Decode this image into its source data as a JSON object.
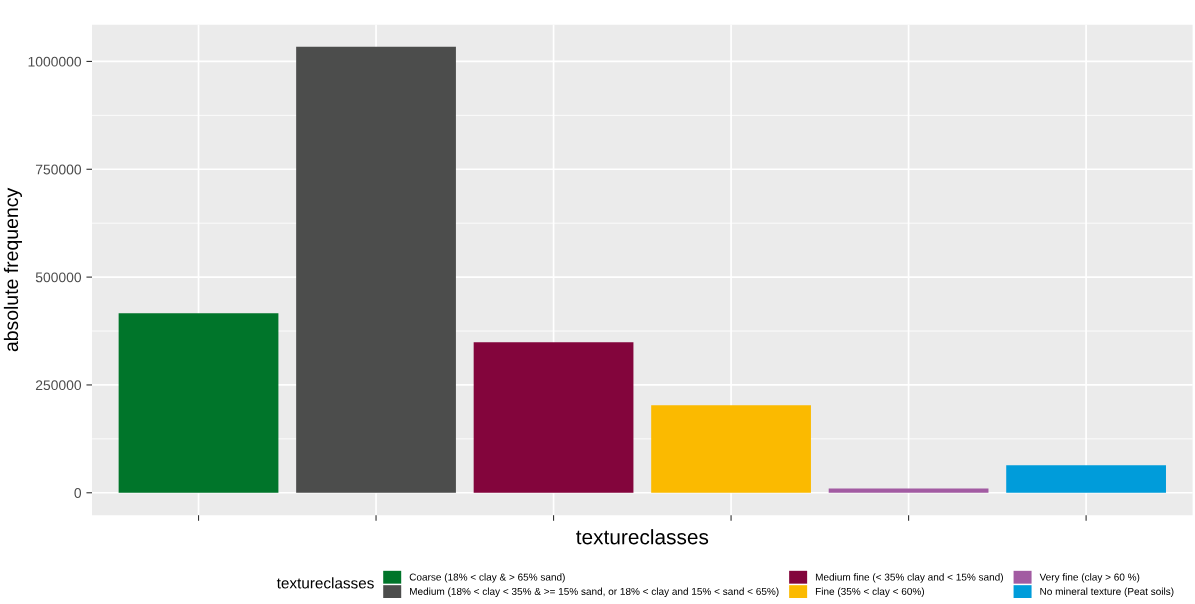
{
  "chart_data": {
    "type": "bar",
    "xlabel": "textureclasses",
    "ylabel": "absolute frequency",
    "legend_title": "textureclasses",
    "categories": [
      null,
      null,
      null,
      null,
      null,
      null
    ],
    "series": [
      {
        "name": "Coarse (18% < clay & > 65% sand)",
        "color": "#00752a",
        "values": [
          416000,
          null,
          null,
          null,
          null,
          null
        ]
      },
      {
        "name": "Medium (18% < clay < 35% & >= 15% sand, or 18% < clay and 15% < sand < 65%)",
        "color": "#4c4d4c",
        "values": [
          null,
          1034000,
          null,
          null,
          null,
          null
        ]
      },
      {
        "name": "Medium fine (< 35% clay and < 15% sand)",
        "color": "#83053c",
        "values": [
          null,
          null,
          349000,
          null,
          null,
          null
        ]
      },
      {
        "name": "Fine (35% < clay < 60%)",
        "color": "#fbba00",
        "values": [
          null,
          null,
          null,
          203000,
          null,
          null
        ]
      },
      {
        "name": "Very fine (clay > 60 %)",
        "color": "#a25ba2",
        "values": [
          null,
          null,
          null,
          null,
          10000,
          null
        ]
      },
      {
        "name": "No mineral texture (Peat soils)",
        "color": "#009cda",
        "values": [
          null,
          null,
          null,
          null,
          null,
          64000
        ]
      }
    ],
    "ylim": [
      -52000,
      1085000
    ],
    "yticks": [
      0,
      250000,
      500000,
      750000,
      1000000
    ],
    "grid": true,
    "legend": "bottom",
    "tick_labels": "y"
  }
}
